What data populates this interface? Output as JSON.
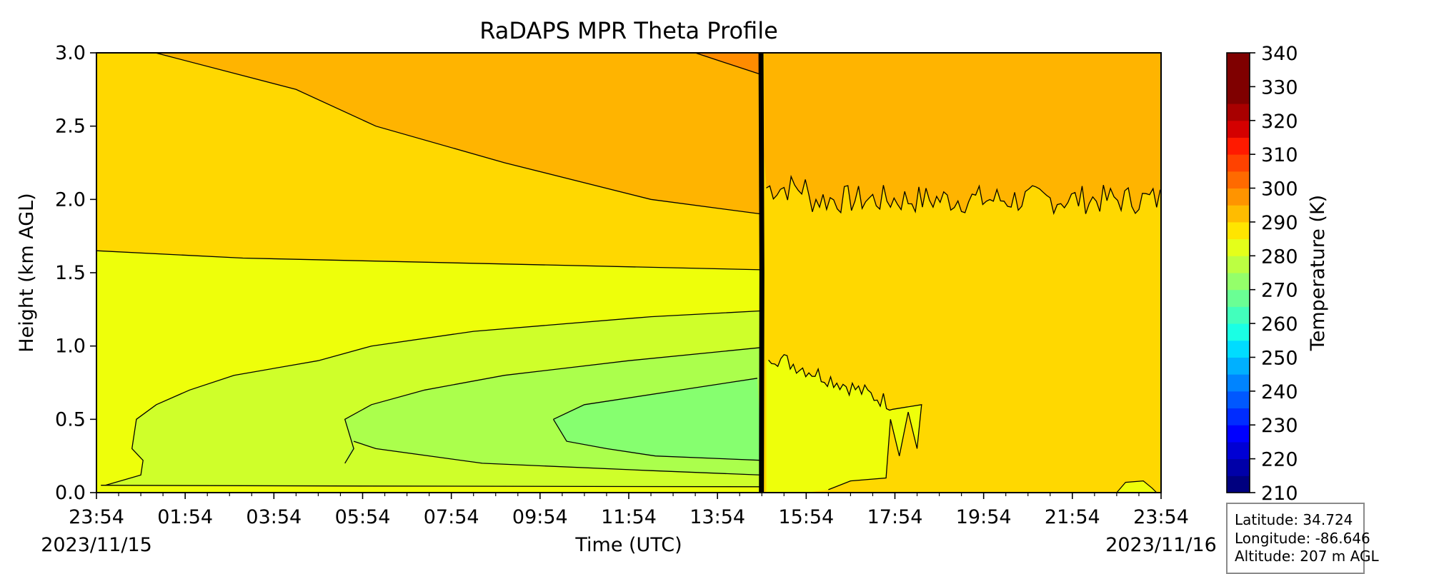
{
  "chart_data": {
    "type": "contour",
    "title": "RaDAPS MPR Theta Profile",
    "xlabel": "Time (UTC)",
    "ylabel": "Height (km AGL)",
    "colorbar_label": "Temperature (K)",
    "x_ticks": [
      "23:54",
      "01:54",
      "03:54",
      "05:54",
      "07:54",
      "09:54",
      "11:54",
      "13:54",
      "15:54",
      "17:54",
      "19:54",
      "21:54",
      "23:54"
    ],
    "x_tick_hours": [
      0,
      2,
      4,
      6,
      8,
      10,
      12,
      14,
      16,
      18,
      20,
      22,
      24
    ],
    "x_start_date": "2023/11/15",
    "x_end_date": "2023/11/16",
    "xlim_hours": [
      0,
      24
    ],
    "y_ticks": [
      "0.0",
      "0.5",
      "1.0",
      "1.5",
      "2.0",
      "2.5",
      "3.0"
    ],
    "ylim": [
      0.0,
      3.0
    ],
    "colorbar_ticks": [
      "210",
      "220",
      "230",
      "240",
      "250",
      "260",
      "270",
      "280",
      "290",
      "300",
      "310",
      "320",
      "330",
      "340"
    ],
    "colorbar_range": [
      210,
      340
    ],
    "colorbar_step": 5,
    "colorbar_colors": [
      "#00007f",
      "#0000a8",
      "#0000d4",
      "#0000ff",
      "#002cff",
      "#0058ff",
      "#0084ff",
      "#00b0ff",
      "#00dcff",
      "#1affe4",
      "#42ffbc",
      "#6aff94",
      "#94ff6a",
      "#bcff42",
      "#e4ff1a",
      "#ffe500",
      "#ffbc00",
      "#ff9400",
      "#ff6a00",
      "#ff4200",
      "#ff1a00",
      "#d40000",
      "#a80000",
      "#7f0000",
      "#7f0000",
      "#7f0000"
    ],
    "fill_colors": {
      "bg_upper": "#ffd800",
      "mid": "#eeff0a",
      "low": "#cfff2a",
      "lower": "#abff4c",
      "core": "#86ff6f",
      "top": "#ffb400",
      "hot": "#ff8c00"
    },
    "front_hour": 15.0,
    "annotations": {
      "latitude": "Latitude: 34.724",
      "longitude": "Longitude: -86.646",
      "altitude": "Altitude: 207 m AGL"
    }
  }
}
